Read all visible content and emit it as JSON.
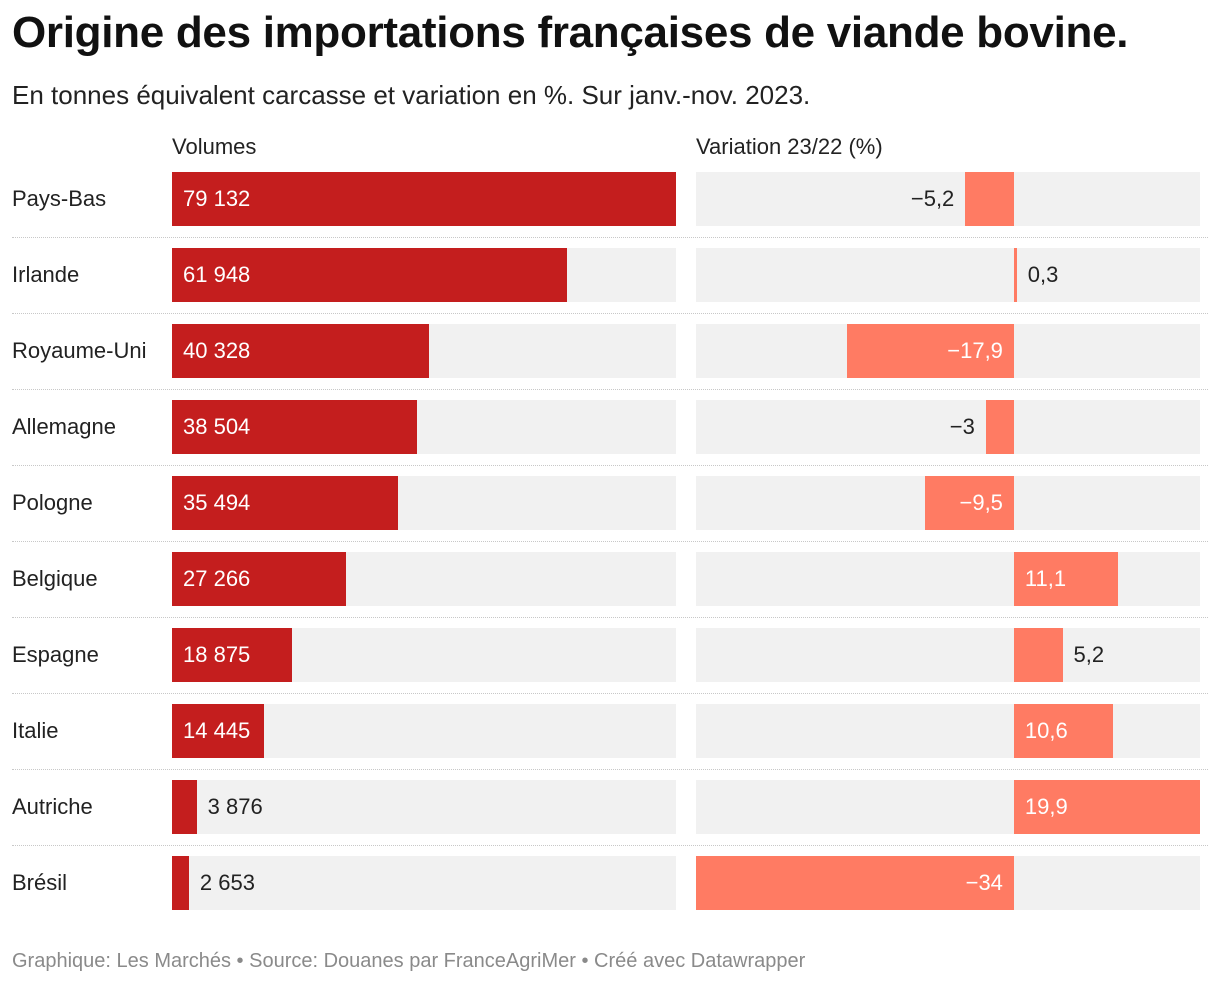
{
  "colors": {
    "volume_bar": "#c41e1e",
    "variation_bar": "#ff7b63",
    "track": "#f1f1f1"
  },
  "chart_data": {
    "type": "bar",
    "title": "Origine des importations françaises de viande bovine.",
    "subtitle": "En tonnes équivalent carcasse et variation en %. Sur janv.-nov. 2023.",
    "columns": {
      "volumes": "Volumes",
      "variation": "Variation 23/22 (%)"
    },
    "volume_range": [
      0,
      79132
    ],
    "variation_range": [
      -34,
      19.9
    ],
    "rows": [
      {
        "country": "Pays-Bas",
        "volume": 79132,
        "volume_label": "79 132",
        "variation": -5.2,
        "variation_label": "−5,2"
      },
      {
        "country": "Irlande",
        "volume": 61948,
        "volume_label": "61 948",
        "variation": 0.3,
        "variation_label": "0,3"
      },
      {
        "country": "Royaume-Uni",
        "volume": 40328,
        "volume_label": "40 328",
        "variation": -17.9,
        "variation_label": "−17,9"
      },
      {
        "country": "Allemagne",
        "volume": 38504,
        "volume_label": "38 504",
        "variation": -3,
        "variation_label": "−3"
      },
      {
        "country": "Pologne",
        "volume": 35494,
        "volume_label": "35 494",
        "variation": -9.5,
        "variation_label": "−9,5"
      },
      {
        "country": "Belgique",
        "volume": 27266,
        "volume_label": "27 266",
        "variation": 11.1,
        "variation_label": "11,1"
      },
      {
        "country": "Espagne",
        "volume": 18875,
        "volume_label": "18 875",
        "variation": 5.2,
        "variation_label": "5,2"
      },
      {
        "country": "Italie",
        "volume": 14445,
        "volume_label": "14 445",
        "variation": 10.6,
        "variation_label": "10,6"
      },
      {
        "country": "Autriche",
        "volume": 3876,
        "volume_label": "3 876",
        "variation": 19.9,
        "variation_label": "19,9"
      },
      {
        "country": "Brésil",
        "volume": 2653,
        "volume_label": "2 653",
        "variation": -34,
        "variation_label": "−34"
      }
    ]
  },
  "footer": "Graphique: Les Marchés • Source: Douanes par FranceAgriMer • Créé avec Datawrapper"
}
